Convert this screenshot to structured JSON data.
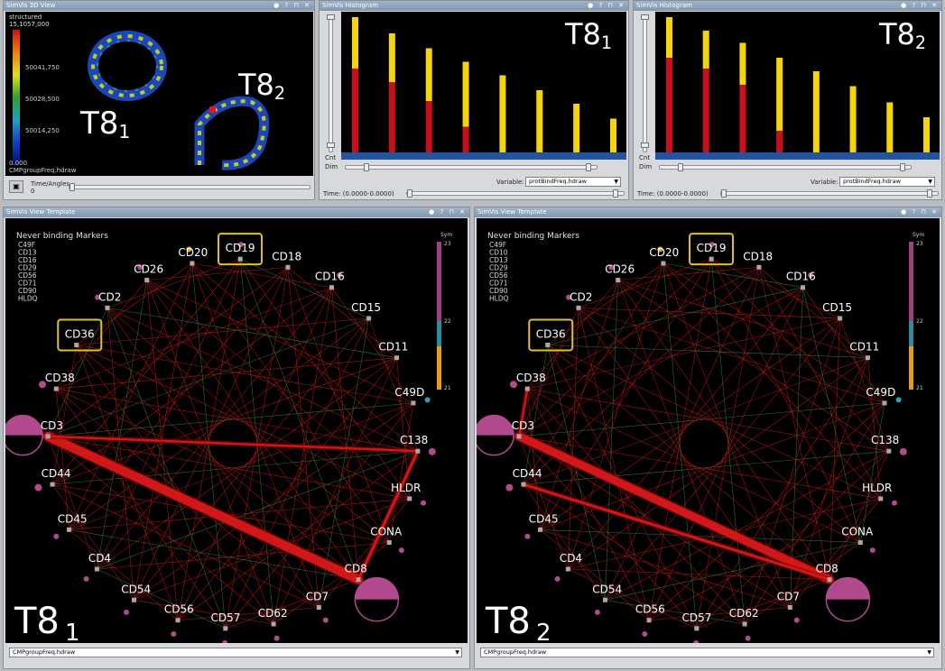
{
  "panels": {
    "view3d": {
      "title": "SimVis 3D View",
      "colorbar_title": "structured",
      "colorbar_max": "15,1057,000",
      "colorbar_ticks": [
        "50041,750",
        "50028,500",
        "50014,250"
      ],
      "colorbar_min": "0.000",
      "dataset": "CMPgroupFreq.hdraw",
      "time_label": "Time/Angles",
      "time_value": "0",
      "label_a": "T8",
      "label_a_sub": "1",
      "label_b": "T8",
      "label_b_sub": "2"
    },
    "hist1": {
      "title": "SimVis Histogram",
      "label": "T8",
      "label_sub": "1",
      "cnt_label": "Cnt",
      "dim_label": "Dim",
      "variable_label": "Variable:",
      "variable_value": "protBindFreq.hdraw",
      "time_label": "Time: (0.0000-0.0000)",
      "bars": [
        [
          1.0,
          0.62
        ],
        [
          0.88,
          0.52
        ],
        [
          0.77,
          0.38
        ],
        [
          0.67,
          0.19
        ],
        [
          0.57,
          0.0
        ],
        [
          0.46,
          0.0
        ],
        [
          0.36,
          0.0
        ],
        [
          0.25,
          0.0
        ]
      ]
    },
    "hist2": {
      "title": "SimVis Histogram",
      "label": "T8",
      "label_sub": "2",
      "cnt_label": "Cnt",
      "dim_label": "Dim",
      "variable_label": "Variable:",
      "variable_value": "protBindFreq.hdraw",
      "time_label": "Time: (0.0000-0.0000)",
      "bars": [
        [
          1.0,
          0.7
        ],
        [
          0.9,
          0.62
        ],
        [
          0.81,
          0.5
        ],
        [
          0.7,
          0.16
        ],
        [
          0.6,
          0.0
        ],
        [
          0.49,
          0.0
        ],
        [
          0.37,
          0.0
        ],
        [
          0.26,
          0.0
        ]
      ]
    },
    "graph1": {
      "title": "SimVis View Template",
      "legend_title": "Never binding Markers",
      "legend_items": [
        "C49F",
        "CD13",
        "CD16",
        "CD29",
        "CD56",
        "CD71",
        "CD90",
        "HLDQ"
      ],
      "scale_title": "Sym",
      "scale_ticks": [
        "23",
        "22",
        "21"
      ],
      "label": "T8",
      "label_sub": "1",
      "dataset": "CMPgroupFreq.hdraw"
    },
    "graph2": {
      "title": "SimVis View Template",
      "legend_title": "Never binding Markers",
      "legend_items": [
        "C49F",
        "CD10",
        "CD13",
        "CD29",
        "CD56",
        "CD71",
        "CD90",
        "HLDQ"
      ],
      "scale_title": "Sym",
      "scale_ticks": [
        "23",
        "22",
        "21"
      ],
      "label": "T8",
      "label_sub": "2",
      "dataset": "CMPgroupFreq.hdraw"
    }
  },
  "nodes": [
    "CD19",
    "CD18",
    "CD16",
    "CD15",
    "CD11",
    "C49D",
    "C138",
    "HLDR",
    "CONA",
    "CD8",
    "CD7",
    "CD62",
    "CD57",
    "CD56",
    "CD54",
    "CD4",
    "CD45",
    "CD44",
    "CD3",
    "CD38",
    "CD36",
    "CD2",
    "CD26",
    "CD20"
  ],
  "colors": {
    "bar_red": "#c8101a",
    "bar_yellow": "#f5d50a",
    "edge_red": "#d01818",
    "edge_green": "#2f8a2f",
    "node_glyph": "#b04a8c",
    "highlight": "#e2c21e",
    "baseline": "#1f55a3"
  }
}
